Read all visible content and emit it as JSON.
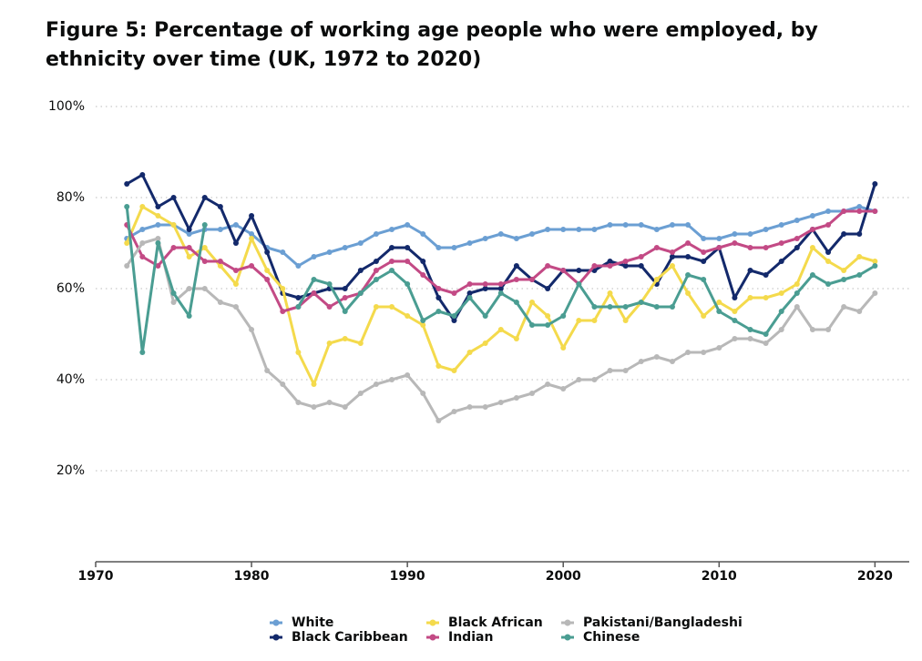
{
  "chart_data": {
    "type": "line",
    "title": "Figure 5: Percentage of working age people who were employed, by ethnicity over time (UK, 1972 to 2020)",
    "x": [
      1972,
      1973,
      1974,
      1975,
      1976,
      1977,
      1978,
      1979,
      1980,
      1981,
      1982,
      1983,
      1984,
      1985,
      1986,
      1987,
      1988,
      1989,
      1990,
      1991,
      1992,
      1993,
      1994,
      1995,
      1996,
      1997,
      1998,
      1999,
      2000,
      2001,
      2002,
      2003,
      2004,
      2005,
      2006,
      2007,
      2008,
      2009,
      2010,
      2011,
      2012,
      2013,
      2014,
      2015,
      2016,
      2017,
      2018,
      2019,
      2020
    ],
    "xlim": [
      1970,
      2022.2
    ],
    "xticks": [
      1970,
      1980,
      1990,
      2000,
      2010,
      2020
    ],
    "ylim": [
      0,
      100
    ],
    "yticks": [
      {
        "value": 20,
        "label": "20%"
      },
      {
        "value": 40,
        "label": "40%"
      },
      {
        "value": 60,
        "label": "60%"
      },
      {
        "value": 80,
        "label": "80%"
      },
      {
        "value": 100,
        "label": "100%"
      }
    ],
    "grid": true,
    "series": [
      {
        "name": "White",
        "color": "#6b9fd3",
        "values": [
          71,
          73,
          74,
          74,
          72,
          73,
          73,
          74,
          72,
          69,
          68,
          65,
          67,
          68,
          69,
          70,
          72,
          73,
          74,
          72,
          69,
          69,
          70,
          71,
          72,
          71,
          72,
          73,
          73,
          73,
          73,
          74,
          74,
          74,
          73,
          74,
          74,
          71,
          71,
          72,
          72,
          73,
          74,
          75,
          76,
          77,
          77,
          78,
          77
        ]
      },
      {
        "name": "Black Caribbean",
        "color": "#13296b",
        "values": [
          83,
          85,
          78,
          80,
          73,
          80,
          78,
          70,
          76,
          68,
          59,
          58,
          59,
          60,
          60,
          64,
          66,
          69,
          69,
          66,
          58,
          53,
          59,
          60,
          60,
          65,
          62,
          60,
          64,
          64,
          64,
          66,
          65,
          65,
          61,
          67,
          67,
          66,
          69,
          58,
          64,
          63,
          66,
          69,
          73,
          68,
          72,
          72,
          83
        ]
      },
      {
        "name": "Black African",
        "color": "#f4da4c",
        "values": [
          70,
          78,
          76,
          74,
          67,
          69,
          65,
          61,
          71,
          64,
          60,
          46,
          39,
          48,
          49,
          48,
          56,
          56,
          54,
          52,
          43,
          42,
          46,
          48,
          51,
          49,
          57,
          54,
          47,
          53,
          53,
          59,
          53,
          57,
          62,
          65,
          59,
          54,
          57,
          55,
          58,
          58,
          59,
          61,
          69,
          66,
          64,
          67,
          66
        ]
      },
      {
        "name": "Indian",
        "color": "#c34a85",
        "values": [
          74,
          67,
          65,
          69,
          69,
          66,
          66,
          64,
          65,
          62,
          55,
          56,
          59,
          56,
          58,
          59,
          64,
          66,
          66,
          63,
          60,
          59,
          61,
          61,
          61,
          62,
          62,
          65,
          64,
          61,
          65,
          65,
          66,
          67,
          69,
          68,
          70,
          68,
          69,
          70,
          69,
          69,
          70,
          71,
          73,
          74,
          77,
          77,
          77
        ]
      },
      {
        "name": "Pakistani/Bangladeshi",
        "color": "#b8b8b8",
        "values": [
          65,
          70,
          71,
          57,
          60,
          60,
          57,
          56,
          51,
          42,
          39,
          35,
          34,
          35,
          34,
          37,
          39,
          40,
          41,
          37,
          31,
          33,
          34,
          34,
          35,
          36,
          37,
          39,
          38,
          40,
          40,
          42,
          42,
          44,
          45,
          44,
          46,
          46,
          47,
          49,
          49,
          48,
          51,
          56,
          51,
          51,
          56,
          55,
          59
        ]
      },
      {
        "name": "Chinese",
        "color": "#4a9d92",
        "values": [
          78,
          46,
          70,
          59,
          54,
          74,
          null,
          null,
          null,
          null,
          null,
          56,
          62,
          61,
          55,
          59,
          62,
          64,
          61,
          53,
          55,
          54,
          58,
          54,
          59,
          57,
          52,
          52,
          54,
          61,
          56,
          56,
          56,
          57,
          56,
          56,
          63,
          62,
          55,
          53,
          51,
          50,
          55,
          59,
          63,
          61,
          62,
          63,
          65
        ]
      }
    ]
  }
}
